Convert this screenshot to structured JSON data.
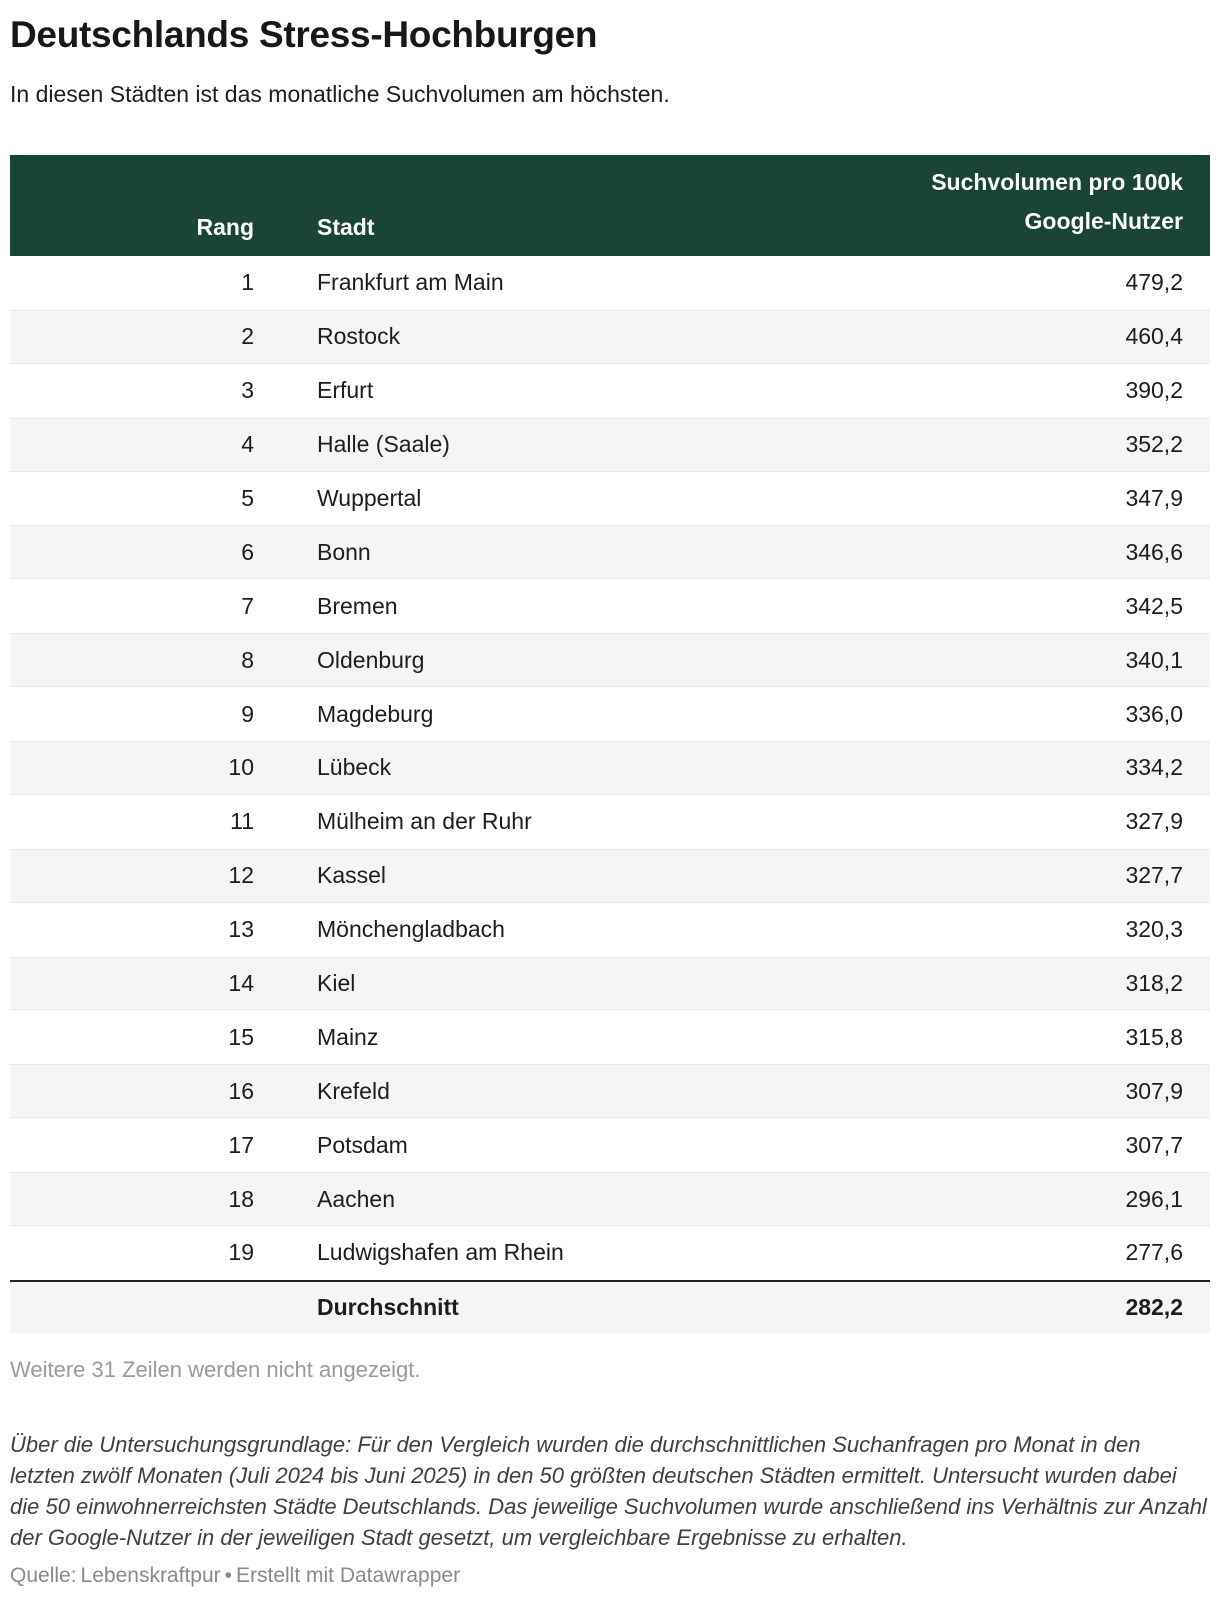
{
  "header": {
    "title": "Deutschlands Stress-Hochburgen",
    "subtitle": "In diesen Städten ist das monatliche Suchvolumen am höchsten."
  },
  "table": {
    "columns": {
      "rank": "Rang",
      "city": "Stadt",
      "value": "Suchvolumen pro 100k\nGoogle-Nutzer"
    },
    "rows": [
      {
        "rank": "1",
        "city": "Frankfurt am Main",
        "value": "479,2"
      },
      {
        "rank": "2",
        "city": "Rostock",
        "value": "460,4"
      },
      {
        "rank": "3",
        "city": "Erfurt",
        "value": "390,2"
      },
      {
        "rank": "4",
        "city": "Halle (Saale)",
        "value": "352,2"
      },
      {
        "rank": "5",
        "city": "Wuppertal",
        "value": "347,9"
      },
      {
        "rank": "6",
        "city": "Bonn",
        "value": "346,6"
      },
      {
        "rank": "7",
        "city": "Bremen",
        "value": "342,5"
      },
      {
        "rank": "8",
        "city": "Oldenburg",
        "value": "340,1"
      },
      {
        "rank": "9",
        "city": "Magdeburg",
        "value": "336,0"
      },
      {
        "rank": "10",
        "city": "Lübeck",
        "value": "334,2"
      },
      {
        "rank": "11",
        "city": "Mülheim an der Ruhr",
        "value": "327,9"
      },
      {
        "rank": "12",
        "city": "Kassel",
        "value": "327,7"
      },
      {
        "rank": "13",
        "city": "Mönchengladbach",
        "value": "320,3"
      },
      {
        "rank": "14",
        "city": "Kiel",
        "value": "318,2"
      },
      {
        "rank": "15",
        "city": "Mainz",
        "value": "315,8"
      },
      {
        "rank": "16",
        "city": "Krefeld",
        "value": "307,9"
      },
      {
        "rank": "17",
        "city": "Potsdam",
        "value": "307,7"
      },
      {
        "rank": "18",
        "city": "Aachen",
        "value": "296,1"
      },
      {
        "rank": "19",
        "city": "Ludwigshafen am Rhein",
        "value": "277,6"
      }
    ],
    "summary": {
      "rank": "",
      "city": "Durchschnitt",
      "value": "282,2"
    }
  },
  "hidden_rows_note": "Weitere 31 Zeilen werden nicht angezeigt.",
  "methodology": "Über die Untersuchungsgrundlage: Für den Vergleich wurden die durchschnittlichen Suchanfragen pro Monat in den letzten zwölf Monaten (Juli 2024 bis Juni 2025) in den 50 größten deutschen Städten ermittelt. Untersucht wurden dabei die 50 einwohnerreichsten Städte Deutschlands. Das jeweilige Suchvolumen wurde anschließend ins Verhältnis zur Anzahl der Google-Nutzer in der jeweiligen Stadt gesetzt, um vergleichbare Ergebnisse zu erhalten.",
  "source": {
    "label": "Quelle:",
    "name": "Lebenskraftpur",
    "separator": "•",
    "attribution": "Erstellt mit Datawrapper"
  },
  "colors": {
    "header_bg": "#1a4534",
    "header_text": "#ffffff",
    "row_alt_bg": "#f5f5f5",
    "row_border": "#e7e7e7",
    "summary_border": "#222222",
    "body_text": "#1d1d1d",
    "muted_text": "#9a9a9a"
  },
  "chart_data": {
    "type": "table",
    "title": "Deutschlands Stress-Hochburgen",
    "subtitle": "In diesen Städten ist das monatliche Suchvolumen am höchsten.",
    "columns": [
      "Rang",
      "Stadt",
      "Suchvolumen pro 100k Google-Nutzer"
    ],
    "rows": [
      [
        1,
        "Frankfurt am Main",
        479.2
      ],
      [
        2,
        "Rostock",
        460.4
      ],
      [
        3,
        "Erfurt",
        390.2
      ],
      [
        4,
        "Halle (Saale)",
        352.2
      ],
      [
        5,
        "Wuppertal",
        347.9
      ],
      [
        6,
        "Bonn",
        346.6
      ],
      [
        7,
        "Bremen",
        342.5
      ],
      [
        8,
        "Oldenburg",
        340.1
      ],
      [
        9,
        "Magdeburg",
        336.0
      ],
      [
        10,
        "Lübeck",
        334.2
      ],
      [
        11,
        "Mülheim an der Ruhr",
        327.9
      ],
      [
        12,
        "Kassel",
        327.7
      ],
      [
        13,
        "Mönchengladbach",
        320.3
      ],
      [
        14,
        "Kiel",
        318.2
      ],
      [
        15,
        "Mainz",
        315.8
      ],
      [
        16,
        "Krefeld",
        307.9
      ],
      [
        17,
        "Potsdam",
        307.7
      ],
      [
        18,
        "Aachen",
        296.1
      ],
      [
        19,
        "Ludwigshafen am Rhein",
        277.6
      ]
    ],
    "summary_row": [
      "",
      "Durchschnitt",
      282.2
    ],
    "hidden_rows": 31
  }
}
